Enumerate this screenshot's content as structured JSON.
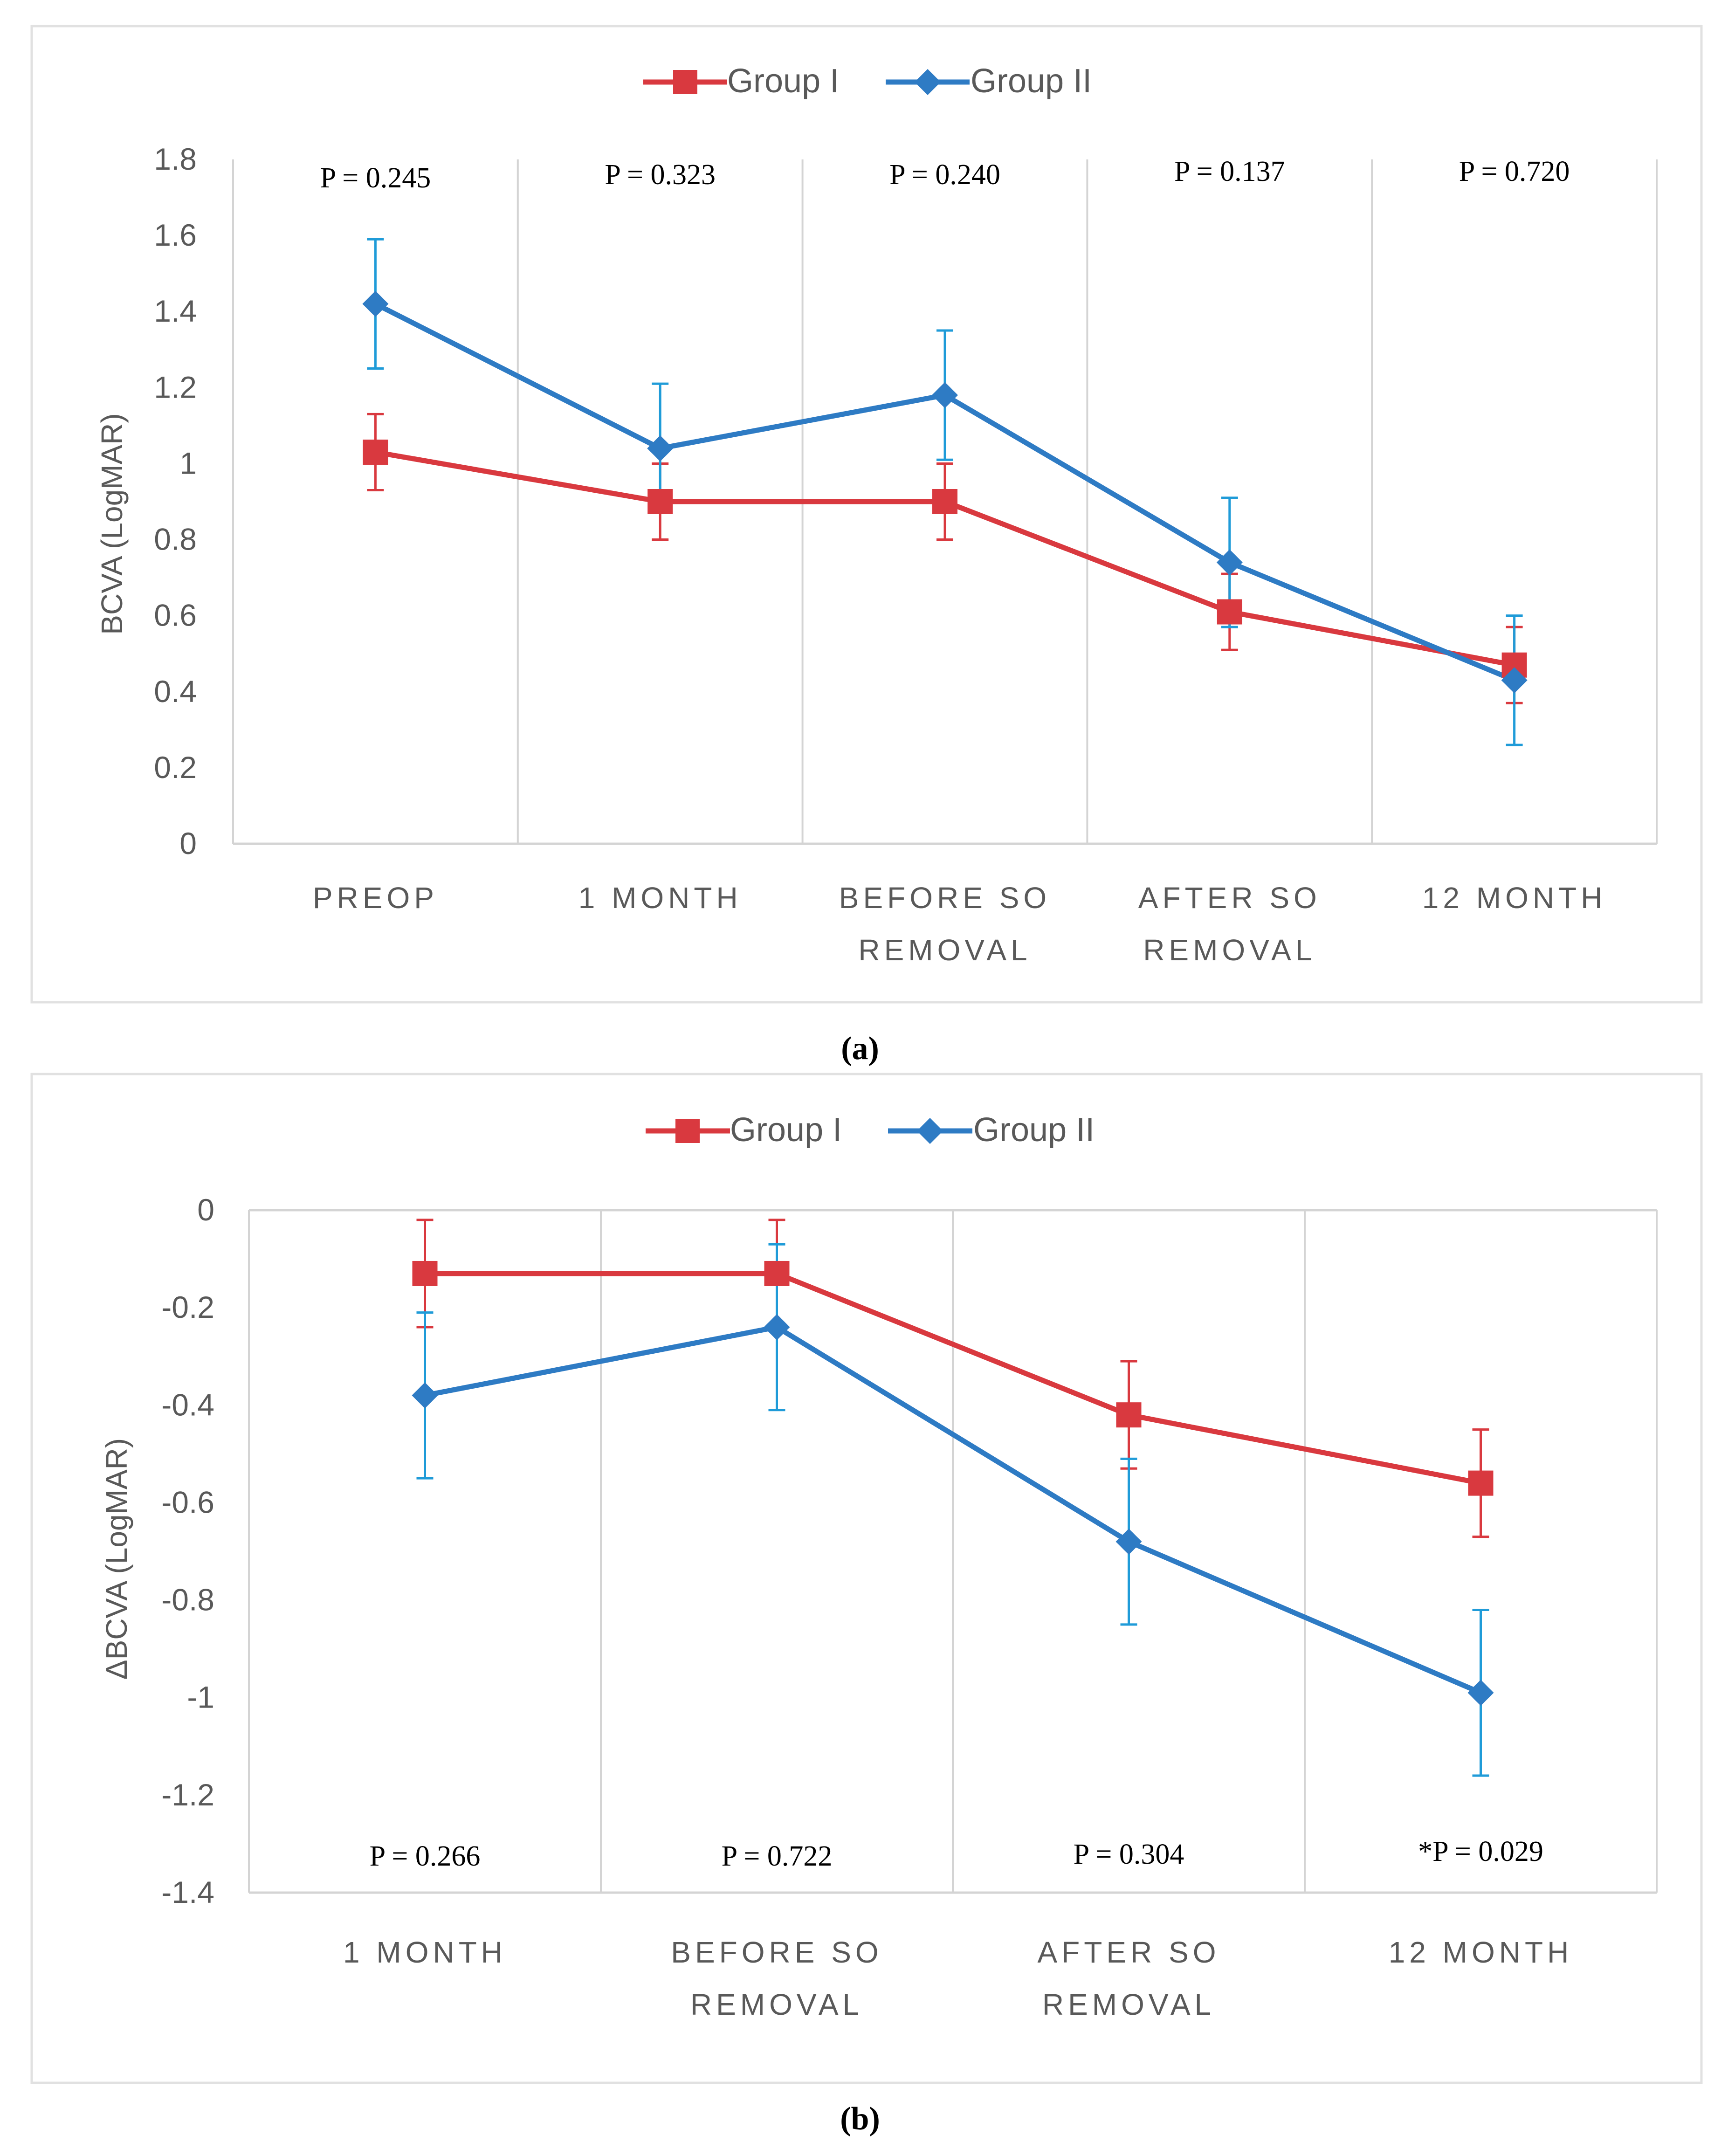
{
  "colors": {
    "group1": "#d9393f",
    "group2": "#2e7bc4",
    "errorbar2": "#1f9bd8",
    "grid": "#d4d4d4",
    "axis_text": "#595959",
    "frame": "#e1e1e1"
  },
  "chart_data": [
    {
      "type": "line",
      "panel_label": "(a)",
      "legend_position": "top-center",
      "ylabel": "BCVA (LogMAR)",
      "ylim": [
        0,
        1.8
      ],
      "yticks": [
        {
          "value": 0,
          "label": "0"
        },
        {
          "value": 0.2,
          "label": "0.2"
        },
        {
          "value": 0.4,
          "label": "0.4"
        },
        {
          "value": 0.6,
          "label": "0.6"
        },
        {
          "value": 0.8,
          "label": "0.8"
        },
        {
          "value": 1.0,
          "label": "1"
        },
        {
          "value": 1.2,
          "label": "1.2"
        },
        {
          "value": 1.4,
          "label": "1.4"
        },
        {
          "value": 1.6,
          "label": "1.6"
        },
        {
          "value": 1.8,
          "label": "1.8"
        }
      ],
      "categories": [
        [
          "PREOP"
        ],
        [
          "1 MONTH"
        ],
        [
          "BEFORE SO",
          "REMOVAL"
        ],
        [
          "AFTER SO",
          "REMOVAL"
        ],
        [
          "12 MONTH"
        ]
      ],
      "p_values": [
        "P = 0.245",
        "P = 0.323",
        "P = 0.240",
        "P = 0.137",
        "P = 0.720"
      ],
      "series": [
        {
          "name": "Group I",
          "values": [
            1.03,
            0.9,
            0.9,
            0.61,
            0.47
          ],
          "errors": [
            0.1,
            0.1,
            0.1,
            0.1,
            0.1
          ]
        },
        {
          "name": "Group II",
          "values": [
            1.42,
            1.04,
            1.18,
            0.74,
            0.43
          ],
          "errors": [
            0.17,
            0.17,
            0.17,
            0.17,
            0.17
          ]
        }
      ]
    },
    {
      "type": "line",
      "panel_label": "(b)",
      "legend_position": "top-center",
      "ylabel": "ΔBCVA (LogMAR)",
      "ylim": [
        -1.4,
        0
      ],
      "yticks": [
        {
          "value": 0,
          "label": "0"
        },
        {
          "value": -0.2,
          "label": "-0.2"
        },
        {
          "value": -0.4,
          "label": "-0.4"
        },
        {
          "value": -0.6,
          "label": "-0.6"
        },
        {
          "value": -0.8,
          "label": "-0.8"
        },
        {
          "value": -1.0,
          "label": "-1"
        },
        {
          "value": -1.2,
          "label": "-1.2"
        },
        {
          "value": -1.4,
          "label": "-1.4"
        }
      ],
      "categories": [
        [
          "1 MONTH"
        ],
        [
          "BEFORE SO",
          "REMOVAL"
        ],
        [
          "AFTER SO",
          "REMOVAL"
        ],
        [
          "12 MONTH"
        ]
      ],
      "p_values": [
        "P = 0.266",
        "P = 0.722",
        "P = 0.304",
        "*P = 0.029"
      ],
      "series": [
        {
          "name": "Group I",
          "values": [
            -0.13,
            -0.13,
            -0.42,
            -0.56
          ],
          "errors": [
            0.11,
            0.11,
            0.11,
            0.11
          ]
        },
        {
          "name": "Group II",
          "values": [
            -0.38,
            -0.24,
            -0.68,
            -0.99
          ],
          "errors": [
            0.17,
            0.17,
            0.17,
            0.17
          ]
        }
      ]
    }
  ]
}
